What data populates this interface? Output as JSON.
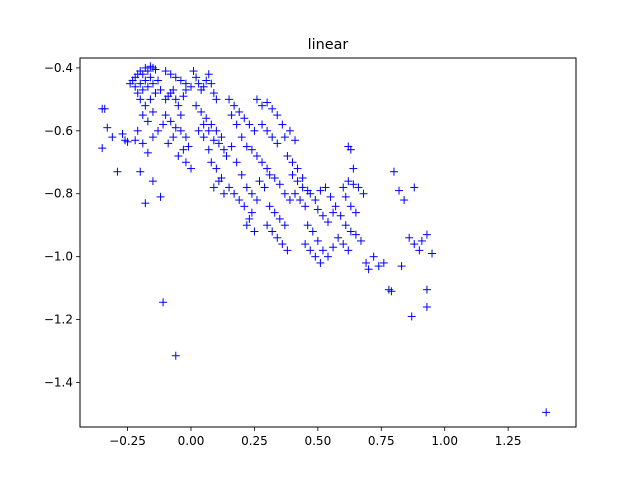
{
  "chart_data": {
    "type": "scatter",
    "title": "linear",
    "xlabel": "",
    "ylabel": "",
    "xlim": [
      -0.4375,
      1.5175
    ],
    "ylim": [
      -1.5415,
      -0.3685
    ],
    "xticks": [
      -0.25,
      0.0,
      0.25,
      0.5,
      0.75,
      1.0,
      1.25
    ],
    "xtick_labels": [
      "−0.25",
      "0.00",
      "0.25",
      "0.50",
      "0.75",
      "1.00",
      "1.25"
    ],
    "yticks": [
      -0.4,
      -0.6,
      -0.8,
      -1.0,
      -1.2,
      -1.4
    ],
    "ytick_labels": [
      "−0.4",
      "−0.6",
      "−0.8",
      "−1.0",
      "−1.2",
      "−1.4"
    ],
    "grid": false,
    "marker": "+",
    "marker_color": "#0000ff",
    "points": [
      [
        -0.35,
        -0.53
      ],
      [
        -0.34,
        -0.53
      ],
      [
        -0.35,
        -0.655
      ],
      [
        -0.33,
        -0.59
      ],
      [
        -0.31,
        -0.62
      ],
      [
        -0.29,
        -0.73
      ],
      [
        -0.27,
        -0.61
      ],
      [
        -0.26,
        -0.63
      ],
      [
        -0.25,
        -0.635
      ],
      [
        -0.24,
        -0.45
      ],
      [
        -0.23,
        -0.44
      ],
      [
        -0.22,
        -0.43
      ],
      [
        -0.21,
        -0.42
      ],
      [
        -0.2,
        -0.41
      ],
      [
        -0.19,
        -0.42
      ],
      [
        -0.18,
        -0.4
      ],
      [
        -0.17,
        -0.41
      ],
      [
        -0.16,
        -0.395
      ],
      [
        -0.15,
        -0.4
      ],
      [
        -0.14,
        -0.405
      ],
      [
        -0.22,
        -0.46
      ],
      [
        -0.2,
        -0.45
      ],
      [
        -0.18,
        -0.44
      ],
      [
        -0.16,
        -0.43
      ],
      [
        -0.21,
        -0.48
      ],
      [
        -0.19,
        -0.47
      ],
      [
        -0.17,
        -0.46
      ],
      [
        -0.15,
        -0.45
      ],
      [
        -0.13,
        -0.44
      ],
      [
        -0.2,
        -0.5
      ],
      [
        -0.18,
        -0.52
      ],
      [
        -0.16,
        -0.5
      ],
      [
        -0.14,
        -0.48
      ],
      [
        -0.12,
        -0.47
      ],
      [
        -0.19,
        -0.55
      ],
      [
        -0.17,
        -0.57
      ],
      [
        -0.15,
        -0.54
      ],
      [
        -0.21,
        -0.6
      ],
      [
        -0.19,
        -0.64
      ],
      [
        -0.17,
        -0.67
      ],
      [
        -0.15,
        -0.62
      ],
      [
        -0.13,
        -0.6
      ],
      [
        -0.11,
        -0.58
      ],
      [
        -0.22,
        -0.63
      ],
      [
        -0.2,
        -0.73
      ],
      [
        -0.18,
        -0.83
      ],
      [
        -0.15,
        -0.76
      ],
      [
        -0.12,
        -0.81
      ],
      [
        -0.1,
        -0.5
      ],
      [
        -0.09,
        -0.49
      ],
      [
        -0.08,
        -0.48
      ],
      [
        -0.07,
        -0.47
      ],
      [
        -0.06,
        -0.5
      ],
      [
        -0.05,
        -0.52
      ],
      [
        -0.04,
        -0.55
      ],
      [
        -0.03,
        -0.49
      ],
      [
        -0.02,
        -0.47
      ],
      [
        -0.1,
        -0.41
      ],
      [
        -0.08,
        -0.42
      ],
      [
        -0.06,
        -0.43
      ],
      [
        -0.04,
        -0.44
      ],
      [
        -0.02,
        -0.45
      ],
      [
        0.0,
        -0.46
      ],
      [
        -0.1,
        -0.55
      ],
      [
        -0.08,
        -0.57
      ],
      [
        -0.06,
        -0.59
      ],
      [
        -0.04,
        -0.6
      ],
      [
        -0.02,
        -0.62
      ],
      [
        -0.05,
        -0.68
      ],
      [
        -0.03,
        -0.66
      ],
      [
        -0.01,
        -0.65
      ],
      [
        -0.02,
        -0.7
      ],
      [
        0.0,
        -0.72
      ],
      [
        -0.09,
        -0.64
      ],
      [
        -0.07,
        -0.62
      ],
      [
        -0.11,
        -1.145
      ],
      [
        -0.06,
        -1.315
      ],
      [
        0.01,
        -0.41
      ],
      [
        0.02,
        -0.43
      ],
      [
        0.03,
        -0.45
      ],
      [
        0.04,
        -0.47
      ],
      [
        0.05,
        -0.46
      ],
      [
        0.06,
        -0.44
      ],
      [
        0.07,
        -0.42
      ],
      [
        0.08,
        -0.45
      ],
      [
        0.09,
        -0.48
      ],
      [
        0.1,
        -0.5
      ],
      [
        0.02,
        -0.52
      ],
      [
        0.04,
        -0.54
      ],
      [
        0.06,
        -0.56
      ],
      [
        0.08,
        -0.58
      ],
      [
        0.1,
        -0.6
      ],
      [
        0.12,
        -0.62
      ],
      [
        0.05,
        -0.58
      ],
      [
        0.07,
        -0.6
      ],
      [
        0.09,
        -0.63
      ],
      [
        0.11,
        -0.64
      ],
      [
        0.13,
        -0.66
      ],
      [
        0.08,
        -0.7
      ],
      [
        0.1,
        -0.72
      ],
      [
        0.12,
        -0.75
      ],
      [
        0.14,
        -0.68
      ],
      [
        0.16,
        -0.65
      ],
      [
        0.03,
        -0.6
      ],
      [
        0.05,
        -0.62
      ],
      [
        0.07,
        -0.66
      ],
      [
        0.09,
        -0.78
      ],
      [
        0.11,
        -0.76
      ],
      [
        0.13,
        -0.8
      ],
      [
        0.15,
        -0.5
      ],
      [
        0.17,
        -0.52
      ],
      [
        0.19,
        -0.54
      ],
      [
        0.21,
        -0.56
      ],
      [
        0.23,
        -0.58
      ],
      [
        0.25,
        -0.6
      ],
      [
        0.16,
        -0.55
      ],
      [
        0.18,
        -0.58
      ],
      [
        0.2,
        -0.62
      ],
      [
        0.22,
        -0.65
      ],
      [
        0.24,
        -0.66
      ],
      [
        0.18,
        -0.7
      ],
      [
        0.2,
        -0.74
      ],
      [
        0.22,
        -0.78
      ],
      [
        0.24,
        -0.8
      ],
      [
        0.26,
        -0.82
      ],
      [
        0.15,
        -0.78
      ],
      [
        0.17,
        -0.8
      ],
      [
        0.19,
        -0.82
      ],
      [
        0.21,
        -0.84
      ],
      [
        0.23,
        -0.88
      ],
      [
        0.25,
        -0.92
      ],
      [
        0.22,
        -0.9
      ],
      [
        0.24,
        -0.86
      ],
      [
        0.26,
        -0.68
      ],
      [
        0.28,
        -0.7
      ],
      [
        0.3,
        -0.72
      ],
      [
        0.27,
        -0.76
      ],
      [
        0.29,
        -0.78
      ],
      [
        0.31,
        -0.74
      ],
      [
        0.26,
        -0.5
      ],
      [
        0.28,
        -0.52
      ],
      [
        0.3,
        -0.51
      ],
      [
        0.32,
        -0.53
      ],
      [
        0.34,
        -0.55
      ],
      [
        0.28,
        -0.58
      ],
      [
        0.3,
        -0.6
      ],
      [
        0.32,
        -0.62
      ],
      [
        0.34,
        -0.64
      ],
      [
        0.36,
        -0.58
      ],
      [
        0.33,
        -0.75
      ],
      [
        0.35,
        -0.77
      ],
      [
        0.37,
        -0.8
      ],
      [
        0.39,
        -0.82
      ],
      [
        0.31,
        -0.84
      ],
      [
        0.33,
        -0.86
      ],
      [
        0.35,
        -0.88
      ],
      [
        0.37,
        -0.9
      ],
      [
        0.3,
        -0.9
      ],
      [
        0.32,
        -0.92
      ],
      [
        0.34,
        -0.94
      ],
      [
        0.36,
        -0.96
      ],
      [
        0.38,
        -0.98
      ],
      [
        0.4,
        -0.74
      ],
      [
        0.42,
        -0.76
      ],
      [
        0.41,
        -0.8
      ],
      [
        0.43,
        -0.82
      ],
      [
        0.45,
        -0.84
      ],
      [
        0.44,
        -0.78
      ],
      [
        0.46,
        -0.79
      ],
      [
        0.38,
        -0.68
      ],
      [
        0.4,
        -0.7
      ],
      [
        0.42,
        -0.72
      ],
      [
        0.39,
        -0.6
      ],
      [
        0.37,
        -0.62
      ],
      [
        0.41,
        -0.63
      ],
      [
        0.44,
        -0.75
      ],
      [
        0.47,
        -0.8
      ],
      [
        0.49,
        -0.82
      ],
      [
        0.51,
        -0.79
      ],
      [
        0.53,
        -0.78
      ],
      [
        0.55,
        -0.81
      ],
      [
        0.5,
        -0.85
      ],
      [
        0.52,
        -0.87
      ],
      [
        0.54,
        -0.89
      ],
      [
        0.56,
        -0.86
      ],
      [
        0.46,
        -0.9
      ],
      [
        0.48,
        -0.92
      ],
      [
        0.5,
        -0.95
      ],
      [
        0.52,
        -0.98
      ],
      [
        0.54,
        -1.0
      ],
      [
        0.56,
        -0.97
      ],
      [
        0.45,
        -0.96
      ],
      [
        0.47,
        -0.98
      ],
      [
        0.49,
        -1.0
      ],
      [
        0.51,
        -1.02
      ],
      [
        0.57,
        -0.84
      ],
      [
        0.59,
        -0.87
      ],
      [
        0.61,
        -0.9
      ],
      [
        0.63,
        -0.92
      ],
      [
        0.58,
        -0.94
      ],
      [
        0.6,
        -0.96
      ],
      [
        0.62,
        -0.98
      ],
      [
        0.6,
        -0.78
      ],
      [
        0.62,
        -0.76
      ],
      [
        0.64,
        -0.77
      ],
      [
        0.61,
        -0.81
      ],
      [
        0.63,
        -0.84
      ],
      [
        0.65,
        -0.86
      ],
      [
        0.62,
        -0.65
      ],
      [
        0.63,
        -0.66
      ],
      [
        0.64,
        -0.72
      ],
      [
        0.66,
        -0.78
      ],
      [
        0.68,
        -0.8
      ],
      [
        0.65,
        -0.93
      ],
      [
        0.67,
        -0.95
      ],
      [
        0.69,
        -1.02
      ],
      [
        0.7,
        -1.04
      ],
      [
        0.72,
        -1.0
      ],
      [
        0.74,
        -1.03
      ],
      [
        0.76,
        -1.02
      ],
      [
        0.78,
        -1.105
      ],
      [
        0.79,
        -1.11
      ],
      [
        0.8,
        -0.73
      ],
      [
        0.82,
        -0.79
      ],
      [
        0.84,
        -0.82
      ],
      [
        0.86,
        -0.94
      ],
      [
        0.88,
        -0.96
      ],
      [
        0.9,
        -0.98
      ],
      [
        0.91,
        -0.95
      ],
      [
        0.93,
        -0.93
      ],
      [
        0.95,
        -0.99
      ],
      [
        0.83,
        -1.03
      ],
      [
        0.87,
        -1.19
      ],
      [
        0.93,
        -1.105
      ],
      [
        0.93,
        -1.16
      ],
      [
        0.88,
        -0.78
      ],
      [
        1.4,
        -1.495
      ]
    ]
  }
}
